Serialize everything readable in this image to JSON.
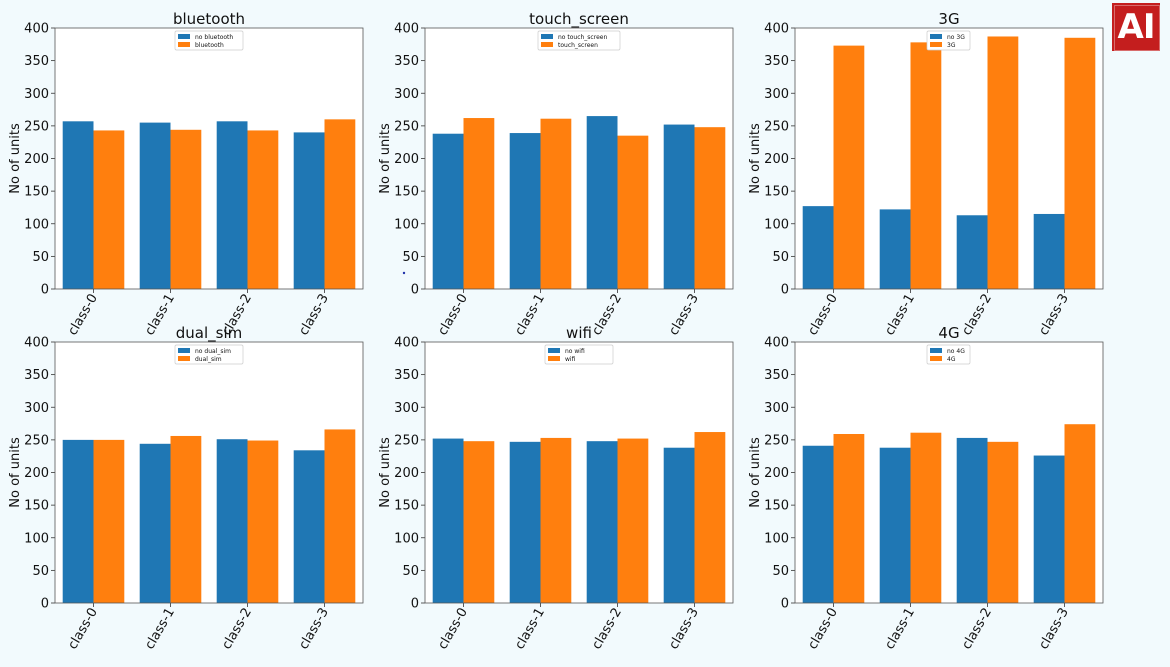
{
  "logo": {
    "text": "AI"
  },
  "colors": {
    "series_0": "#1f77b4",
    "series_1": "#ff7f0e",
    "background": "#f2fafd",
    "axes": "#ffffff"
  },
  "chart_data": [
    {
      "type": "bar",
      "title": "bluetooth",
      "ylabel": "No of units",
      "xlabel": "",
      "ylim": [
        0,
        400
      ],
      "yticks": [
        0,
        50,
        100,
        150,
        200,
        250,
        300,
        350,
        400
      ],
      "categories": [
        "class-0",
        "class-1",
        "class-2",
        "class-3"
      ],
      "legend_position": "top-center",
      "series": [
        {
          "name": "no bluetooth",
          "values": [
            257,
            255,
            257,
            240
          ]
        },
        {
          "name": "bluetooth",
          "values": [
            243,
            244,
            243,
            260
          ]
        }
      ]
    },
    {
      "type": "bar",
      "title": "touch_screen",
      "ylabel": "No of units",
      "xlabel": "",
      "ylim": [
        0,
        400
      ],
      "yticks": [
        0,
        50,
        100,
        150,
        200,
        250,
        300,
        350,
        400
      ],
      "categories": [
        "class-0",
        "class-1",
        "class-2",
        "class-3"
      ],
      "legend_position": "top-center",
      "series": [
        {
          "name": "no touch_screen",
          "values": [
            238,
            239,
            265,
            252
          ]
        },
        {
          "name": "touch_screen",
          "values": [
            262,
            261,
            235,
            248
          ]
        }
      ]
    },
    {
      "type": "bar",
      "title": "3G",
      "ylabel": "No of units",
      "xlabel": "",
      "ylim": [
        0,
        400
      ],
      "yticks": [
        0,
        50,
        100,
        150,
        200,
        250,
        300,
        350,
        400
      ],
      "categories": [
        "class-0",
        "class-1",
        "class-2",
        "class-3"
      ],
      "legend_position": "top-left",
      "series": [
        {
          "name": "no 3G",
          "values": [
            127,
            122,
            113,
            115
          ]
        },
        {
          "name": "3G",
          "values": [
            373,
            378,
            387,
            385
          ]
        }
      ]
    },
    {
      "type": "bar",
      "title": "dual_sim",
      "ylabel": "No of units",
      "xlabel": "",
      "ylim": [
        0,
        400
      ],
      "yticks": [
        0,
        50,
        100,
        150,
        200,
        250,
        300,
        350,
        400
      ],
      "categories": [
        "class-0",
        "class-1",
        "class-2",
        "class-3"
      ],
      "legend_position": "top-center",
      "series": [
        {
          "name": "no dual_sim",
          "values": [
            250,
            244,
            251,
            234
          ]
        },
        {
          "name": "dual_sim",
          "values": [
            250,
            256,
            249,
            266
          ]
        }
      ]
    },
    {
      "type": "bar",
      "title": "wifi",
      "ylabel": "No of units",
      "xlabel": "",
      "ylim": [
        0,
        400
      ],
      "yticks": [
        0,
        50,
        100,
        150,
        200,
        250,
        300,
        350,
        400
      ],
      "categories": [
        "class-0",
        "class-1",
        "class-2",
        "class-3"
      ],
      "legend_position": "top-center",
      "series": [
        {
          "name": "no wifi",
          "values": [
            252,
            247,
            248,
            238
          ]
        },
        {
          "name": "wifi",
          "values": [
            248,
            253,
            252,
            262
          ]
        }
      ]
    },
    {
      "type": "bar",
      "title": "4G",
      "ylabel": "No of units",
      "xlabel": "",
      "ylim": [
        0,
        400
      ],
      "yticks": [
        0,
        50,
        100,
        150,
        200,
        250,
        300,
        350,
        400
      ],
      "categories": [
        "class-0",
        "class-1",
        "class-2",
        "class-3"
      ],
      "legend_position": "top-left",
      "series": [
        {
          "name": "no 4G",
          "values": [
            241,
            238,
            253,
            226
          ]
        },
        {
          "name": "4G",
          "values": [
            259,
            261,
            247,
            274
          ]
        }
      ]
    }
  ]
}
